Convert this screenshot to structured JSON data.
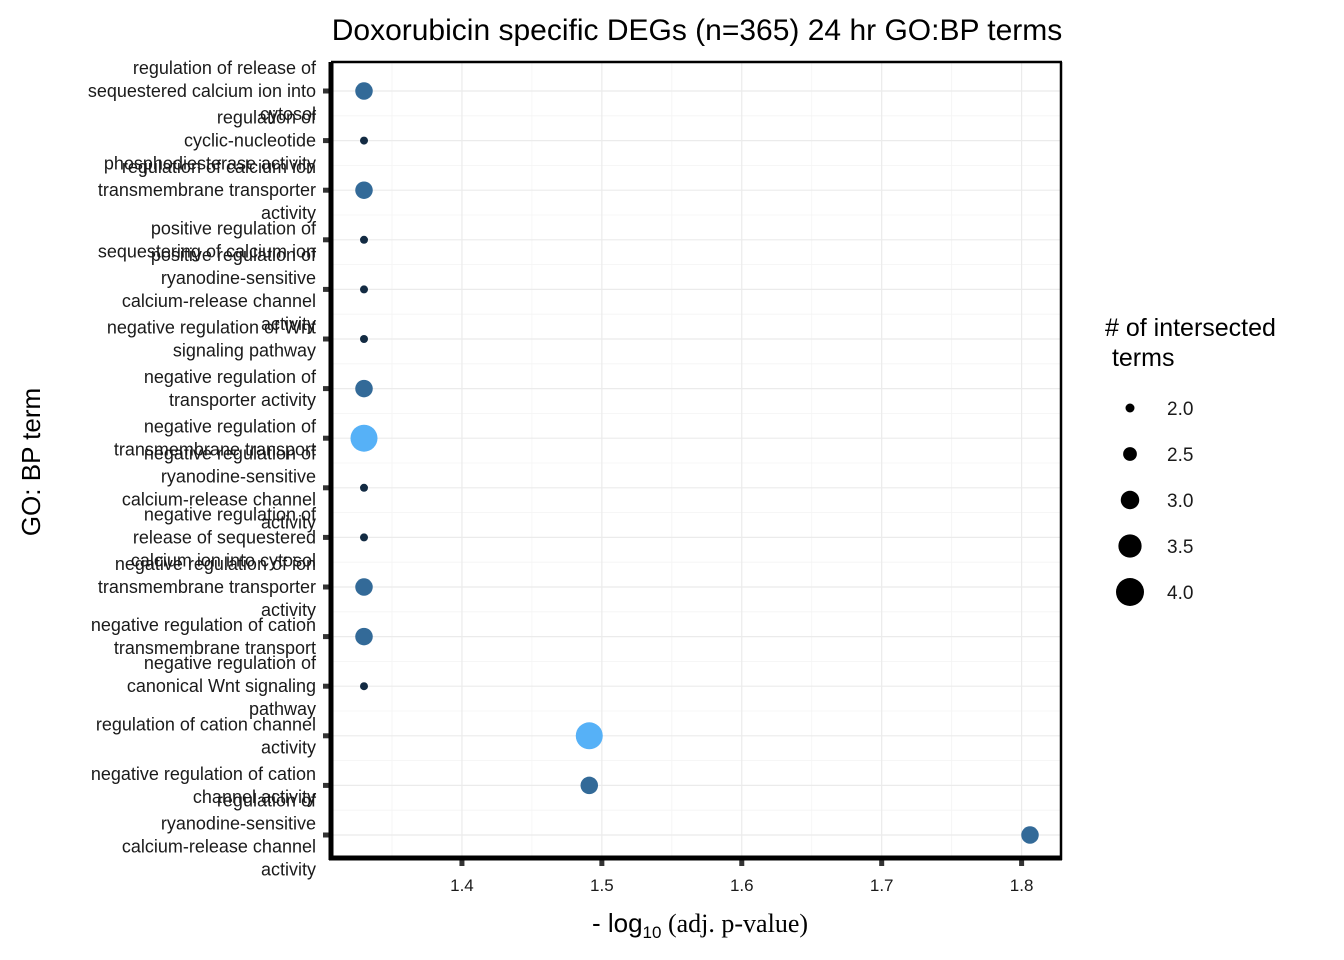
{
  "chart_data": {
    "type": "scatter",
    "title": "Doxorubicin specific DEGs (n=365) 24 hr GO:BP terms",
    "xlabel_prefix": "- log",
    "xlabel_sub": "10",
    "xlabel_suffix": " (adj. p-value)",
    "ylabel": "GO: BP term",
    "xlim": [
      1.305,
      1.83
    ],
    "xticks": [
      1.4,
      1.5,
      1.6,
      1.7,
      1.8
    ],
    "grid": true,
    "legend_title": [
      "# of intersected",
      " terms"
    ],
    "legend_placement": "right",
    "legend_sizes": [
      2.0,
      2.5,
      3.0,
      3.5,
      4.0
    ],
    "size_range": [
      2,
      4
    ],
    "colors": {
      "high": "#56B1F7",
      "mid": "#336A98",
      "low": "#132B43",
      "legend_dot": "#000000"
    },
    "categories": [
      [
        "regulation of release of",
        "sequestered calcium ion into",
        "cytosol"
      ],
      [
        "regulation of",
        "cyclic-nucleotide",
        "phosphodiesterase activity"
      ],
      [
        "regulation of calcium ion",
        "transmembrane transporter",
        "activity"
      ],
      [
        "positive regulation of",
        "sequestering of calcium ion"
      ],
      [
        "positive regulation of",
        "ryanodine-sensitive",
        "calcium-release channel",
        "activity"
      ],
      [
        "negative regulation of Wnt",
        "signaling pathway"
      ],
      [
        "negative regulation of",
        "transporter activity"
      ],
      [
        "negative regulation of",
        "transmembrane transport"
      ],
      [
        "negative regulation of",
        "ryanodine-sensitive",
        "calcium-release channel",
        "activity"
      ],
      [
        "negative regulation of",
        "release of sequestered",
        "calcium ion into cytosol"
      ],
      [
        "negative regulation of ion",
        "transmembrane transporter",
        "activity"
      ],
      [
        "negative regulation of cation",
        "transmembrane transport"
      ],
      [
        "negative regulation of",
        "canonical Wnt signaling",
        "pathway"
      ],
      [
        "regulation of cation channel",
        "activity"
      ],
      [
        "negative regulation of cation",
        "channel activity"
      ],
      [
        "regulation of",
        "ryanodine-sensitive",
        "calcium-release channel",
        "activity"
      ]
    ],
    "points": [
      {
        "x": 1.33,
        "size": 3,
        "color": "#336A98"
      },
      {
        "x": 1.33,
        "size": 2,
        "color": "#132B43"
      },
      {
        "x": 1.33,
        "size": 3,
        "color": "#336A98"
      },
      {
        "x": 1.33,
        "size": 2,
        "color": "#132B43"
      },
      {
        "x": 1.33,
        "size": 2,
        "color": "#132B43"
      },
      {
        "x": 1.33,
        "size": 2,
        "color": "#132B43"
      },
      {
        "x": 1.33,
        "size": 3,
        "color": "#336A98"
      },
      {
        "x": 1.33,
        "size": 4,
        "color": "#56B1F7"
      },
      {
        "x": 1.33,
        "size": 2,
        "color": "#132B43"
      },
      {
        "x": 1.33,
        "size": 2,
        "color": "#132B43"
      },
      {
        "x": 1.33,
        "size": 3,
        "color": "#336A98"
      },
      {
        "x": 1.33,
        "size": 3,
        "color": "#336A98"
      },
      {
        "x": 1.33,
        "size": 2,
        "color": "#132B43"
      },
      {
        "x": 1.491,
        "size": 4,
        "color": "#56B1F7"
      },
      {
        "x": 1.491,
        "size": 3,
        "color": "#336A98"
      },
      {
        "x": 1.806,
        "size": 3,
        "color": "#336A98"
      }
    ]
  }
}
